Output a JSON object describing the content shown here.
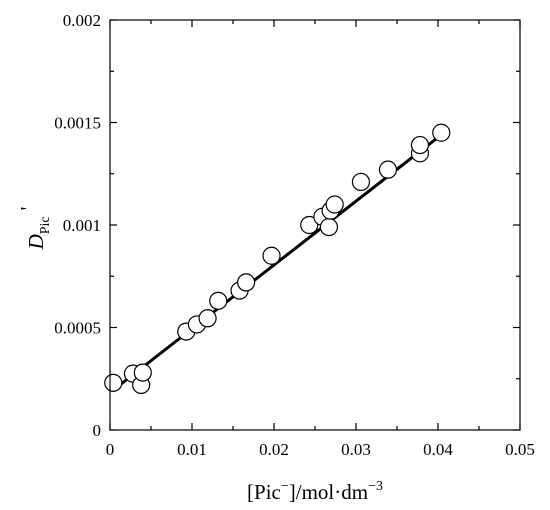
{
  "chart_data": {
    "type": "scatter",
    "xlabel": {
      "main": "[Pic",
      "sup1": "−",
      "rest": "]/mol·dm",
      "sup2": "−3"
    },
    "ylabel": {
      "main": "D",
      "sub": "Pic",
      "prime": "'"
    },
    "xlim": [
      0,
      0.05
    ],
    "ylim": [
      0,
      0.002
    ],
    "xticks": [
      {
        "value": 0,
        "label": "0"
      },
      {
        "value": 0.01,
        "label": "0.01"
      },
      {
        "value": 0.02,
        "label": "0.02"
      },
      {
        "value": 0.03,
        "label": "0.03"
      },
      {
        "value": 0.04,
        "label": "0.04"
      },
      {
        "value": 0.05,
        "label": "0.05"
      }
    ],
    "yticks": [
      {
        "value": 0,
        "label": "0"
      },
      {
        "value": 0.0005,
        "label": "0.0005"
      },
      {
        "value": 0.001,
        "label": "0.001"
      },
      {
        "value": 0.0015,
        "label": "0.0015"
      },
      {
        "value": 0.002,
        "label": "0.002"
      }
    ],
    "series": [
      {
        "marker": "open-circle",
        "color": "#000000",
        "x": [
          0.0004,
          0.0028,
          0.0038,
          0.004,
          0.0093,
          0.0106,
          0.0119,
          0.0132,
          0.0158,
          0.0166,
          0.0197,
          0.0243,
          0.0259,
          0.0267,
          0.0269,
          0.0274,
          0.0306,
          0.0339,
          0.0378,
          0.0378,
          0.0404
        ],
        "y": [
          0.00023,
          0.000275,
          0.00022,
          0.00028,
          0.00048,
          0.000515,
          0.000545,
          0.00063,
          0.00068,
          0.00072,
          0.00085,
          0.001,
          0.00104,
          0.00099,
          0.00107,
          0.0011,
          0.00121,
          0.00127,
          0.00135,
          0.00139,
          0.00145
        ]
      }
    ],
    "fit_line": {
      "x": [
        0.0004,
        0.0404
      ],
      "y": [
        0.000195,
        0.00144
      ],
      "color": "#000000"
    }
  }
}
